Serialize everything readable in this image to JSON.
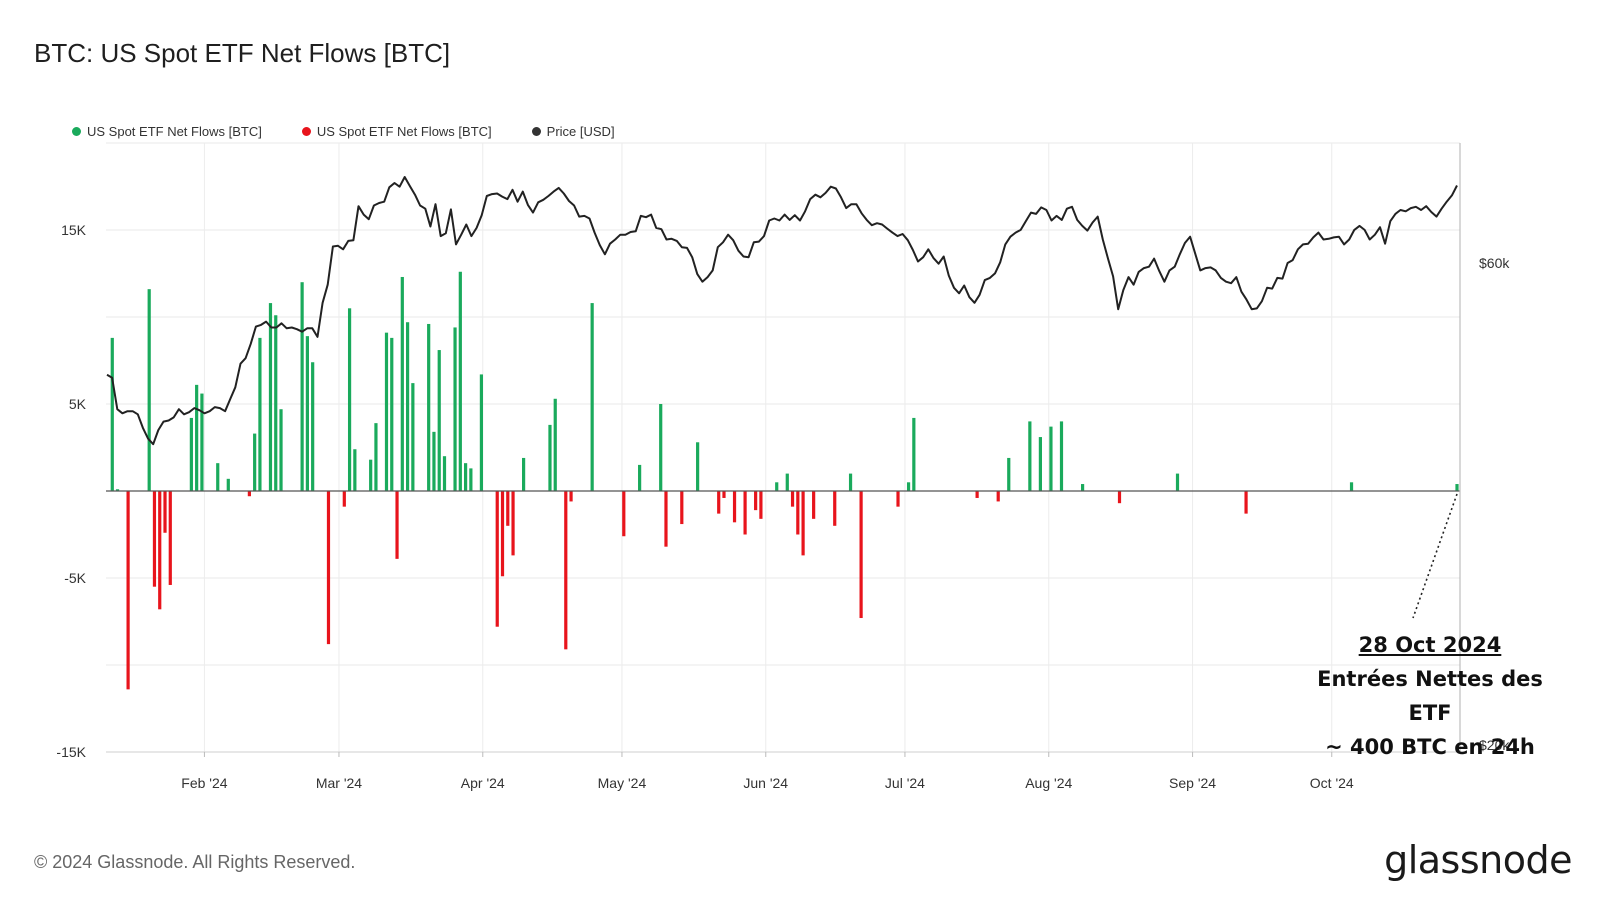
{
  "title": "BTC: US Spot ETF Net Flows [BTC]",
  "legend": [
    {
      "label": "US Spot ETF Net Flows [BTC]",
      "color": "#1aaa5c"
    },
    {
      "label": "US Spot ETF Net Flows [BTC]",
      "color": "#e8141c"
    },
    {
      "label": "Price [USD]",
      "color": "#222222"
    }
  ],
  "annotation": {
    "date": "28 Oct 2024",
    "line1": "Entrées Nettes des ETF",
    "line2": "~ 400 BTC en 24h"
  },
  "footer": {
    "copyright": "© 2024 Glassnode. All Rights Reserved.",
    "brand": "glassnode"
  },
  "chart_data": {
    "type": "bar",
    "x_range": [
      "2024-01-11",
      "2024-10-28"
    ],
    "x_tick_labels": [
      "Feb '24",
      "Mar '24",
      "Apr '24",
      "May '24",
      "Jun '24",
      "Jul '24",
      "Aug '24",
      "Sep '24",
      "Oct '24"
    ],
    "y_left": {
      "ticks": [
        15000,
        5000,
        -5000,
        -15000
      ],
      "tick_labels": [
        "15K",
        "5K",
        "-5K",
        "-15K"
      ],
      "range": [
        -15000,
        20000
      ]
    },
    "y_right": {
      "scale": "log",
      "tick_labels": [
        "$60k",
        "$20k"
      ],
      "ticks": [
        60000,
        20000
      ]
    },
    "grid": true,
    "legend_position": "top-left",
    "colors": {
      "inflow": "#1aaa5c",
      "outflow": "#e8141c",
      "price": "#222222",
      "zero": "#555555"
    },
    "series": [
      {
        "name": "US Spot ETF Net Flows [BTC]",
        "unit": "BTC",
        "values": [
          0,
          8800,
          100,
          0,
          -11400,
          0,
          0,
          0,
          11600,
          -5500,
          -6800,
          -2400,
          -5400,
          0,
          0,
          0,
          4200,
          6100,
          5600,
          0,
          0,
          1600,
          0,
          700,
          0,
          0,
          0,
          -300,
          3300,
          8800,
          0,
          10800,
          10100,
          4700,
          0,
          0,
          0,
          12000,
          8900,
          7400,
          0,
          0,
          -8800,
          0,
          0,
          -900,
          10500,
          2400,
          0,
          0,
          1800,
          3900,
          0,
          9100,
          8800,
          -3900,
          12300,
          9700,
          6200,
          0,
          0,
          9600,
          3400,
          8100,
          2000,
          0,
          9400,
          12600,
          1600,
          1300,
          0,
          6700,
          0,
          0,
          -7800,
          -4900,
          -2000,
          -3700,
          0,
          1900,
          0,
          0,
          0,
          0,
          3800,
          5300,
          0,
          -9100,
          -600,
          0,
          0,
          0,
          10800,
          0,
          0,
          0,
          0,
          0,
          -2600,
          0,
          0,
          1500,
          0,
          0,
          0,
          5000,
          -3200,
          0,
          0,
          -1900,
          0,
          0,
          2800,
          0,
          0,
          0,
          -1300,
          -400,
          0,
          -1800,
          0,
          -2500,
          0,
          -1100,
          -1600,
          0,
          0,
          500,
          0,
          1000,
          -900,
          -2500,
          -3700,
          0,
          -1600,
          0,
          0,
          0,
          -2000,
          0,
          0,
          1000,
          0,
          -7300,
          0,
          0,
          0,
          0,
          0,
          0,
          -900,
          0,
          500,
          4200,
          0,
          0,
          0,
          0,
          0,
          0,
          0,
          0,
          0,
          0,
          0,
          -400,
          0,
          0,
          0,
          -600,
          0,
          1900,
          0,
          0,
          0,
          4000,
          0,
          3100,
          0,
          3700,
          0,
          4000,
          0,
          0,
          0,
          400,
          0,
          0,
          0,
          0,
          0,
          0,
          -700,
          0,
          0,
          0,
          0,
          0,
          0,
          0,
          0,
          0,
          0,
          1000,
          0,
          0,
          0,
          0,
          0,
          0,
          0,
          0,
          0,
          0,
          0,
          0,
          -1300,
          0,
          0,
          0,
          0,
          0,
          0,
          0,
          0,
          0,
          0,
          0,
          0,
          0,
          0,
          0,
          0,
          0,
          0,
          0,
          500,
          0,
          0,
          0,
          0,
          0,
          0,
          0,
          0,
          0,
          0,
          0,
          0,
          0,
          0,
          0,
          0,
          0,
          0,
          0,
          400
        ]
      },
      {
        "name": "Price [USD]",
        "unit": "USD",
        "values": [
          46500,
          46200,
          43000,
          42600,
          42800,
          42800,
          42500,
          41200,
          40200,
          39700,
          41000,
          41800,
          41900,
          42200,
          43000,
          42500,
          42700,
          43100,
          42900,
          42600,
          42800,
          43200,
          43100,
          42800,
          44000,
          45200,
          47700,
          48300,
          49900,
          51900,
          52100,
          52500,
          51800,
          51800,
          52300,
          51700,
          51800,
          51600,
          51300,
          51700,
          51700,
          50700,
          54800,
          57100,
          62300,
          62400,
          61900,
          63100,
          63200,
          68300,
          67000,
          66300,
          68400,
          68800,
          69000,
          71300,
          72000,
          71400,
          73000,
          71500,
          70100,
          68400,
          67900,
          65200,
          68600,
          63800,
          64200,
          67800,
          62600,
          64000,
          65500,
          63800,
          65000,
          66900,
          69900,
          70200,
          70300,
          69800,
          69400,
          70900,
          69000,
          70600,
          68500,
          67300,
          68900,
          69300,
          69900,
          70600,
          71200,
          70300,
          69100,
          68400,
          66700,
          66800,
          66400,
          64300,
          62500,
          61200,
          62700,
          63300,
          64000,
          64000,
          64400,
          64500,
          66800,
          66600,
          67000,
          65000,
          64800,
          63300,
          63400,
          63100,
          62200,
          62100,
          60800,
          58500,
          57500,
          58100,
          59000,
          62200,
          62900,
          64000,
          63200,
          61700,
          60900,
          60800,
          62900,
          63000,
          63800,
          66100,
          66400,
          66100,
          67000,
          66200,
          66900,
          66100,
          67500,
          69400,
          70100,
          69700,
          70400,
          71400,
          71100,
          69700,
          68000,
          68600,
          68600,
          67200,
          66200,
          65400,
          65700,
          65500,
          64900,
          64300,
          63800,
          64100,
          63200,
          61800,
          60200,
          60800,
          61900,
          60700,
          59900,
          60900,
          58300,
          56700,
          56000,
          57000,
          55500,
          54800,
          55800,
          57700,
          58000,
          58600,
          60100,
          62600,
          63700,
          64300,
          64700,
          66000,
          67300,
          67100,
          68100,
          67700,
          66100,
          66800,
          66200,
          67900,
          68200,
          66200,
          65300,
          64600,
          65800,
          66700,
          63300,
          60600,
          58200,
          54000,
          56400,
          58100,
          57100,
          58800,
          59300,
          59500,
          60600,
          58900,
          57500,
          59000,
          59500,
          61200,
          62800,
          63700,
          61300,
          59000,
          59300,
          59400,
          59000,
          58000,
          57500,
          57300,
          58100,
          56200,
          55200,
          54000,
          54100,
          55000,
          56700,
          56600,
          58000,
          57900,
          60000,
          60400,
          61900,
          62600,
          62700,
          63600,
          64300,
          63300,
          63400,
          63600,
          63700,
          62600,
          63300,
          64700,
          65300,
          64700,
          63300,
          64000,
          65100,
          62700,
          66000,
          67100,
          67700,
          67500,
          68000,
          68200,
          67700,
          68300,
          67400,
          66700,
          67900,
          69000,
          70000,
          71600
        ]
      }
    ]
  }
}
